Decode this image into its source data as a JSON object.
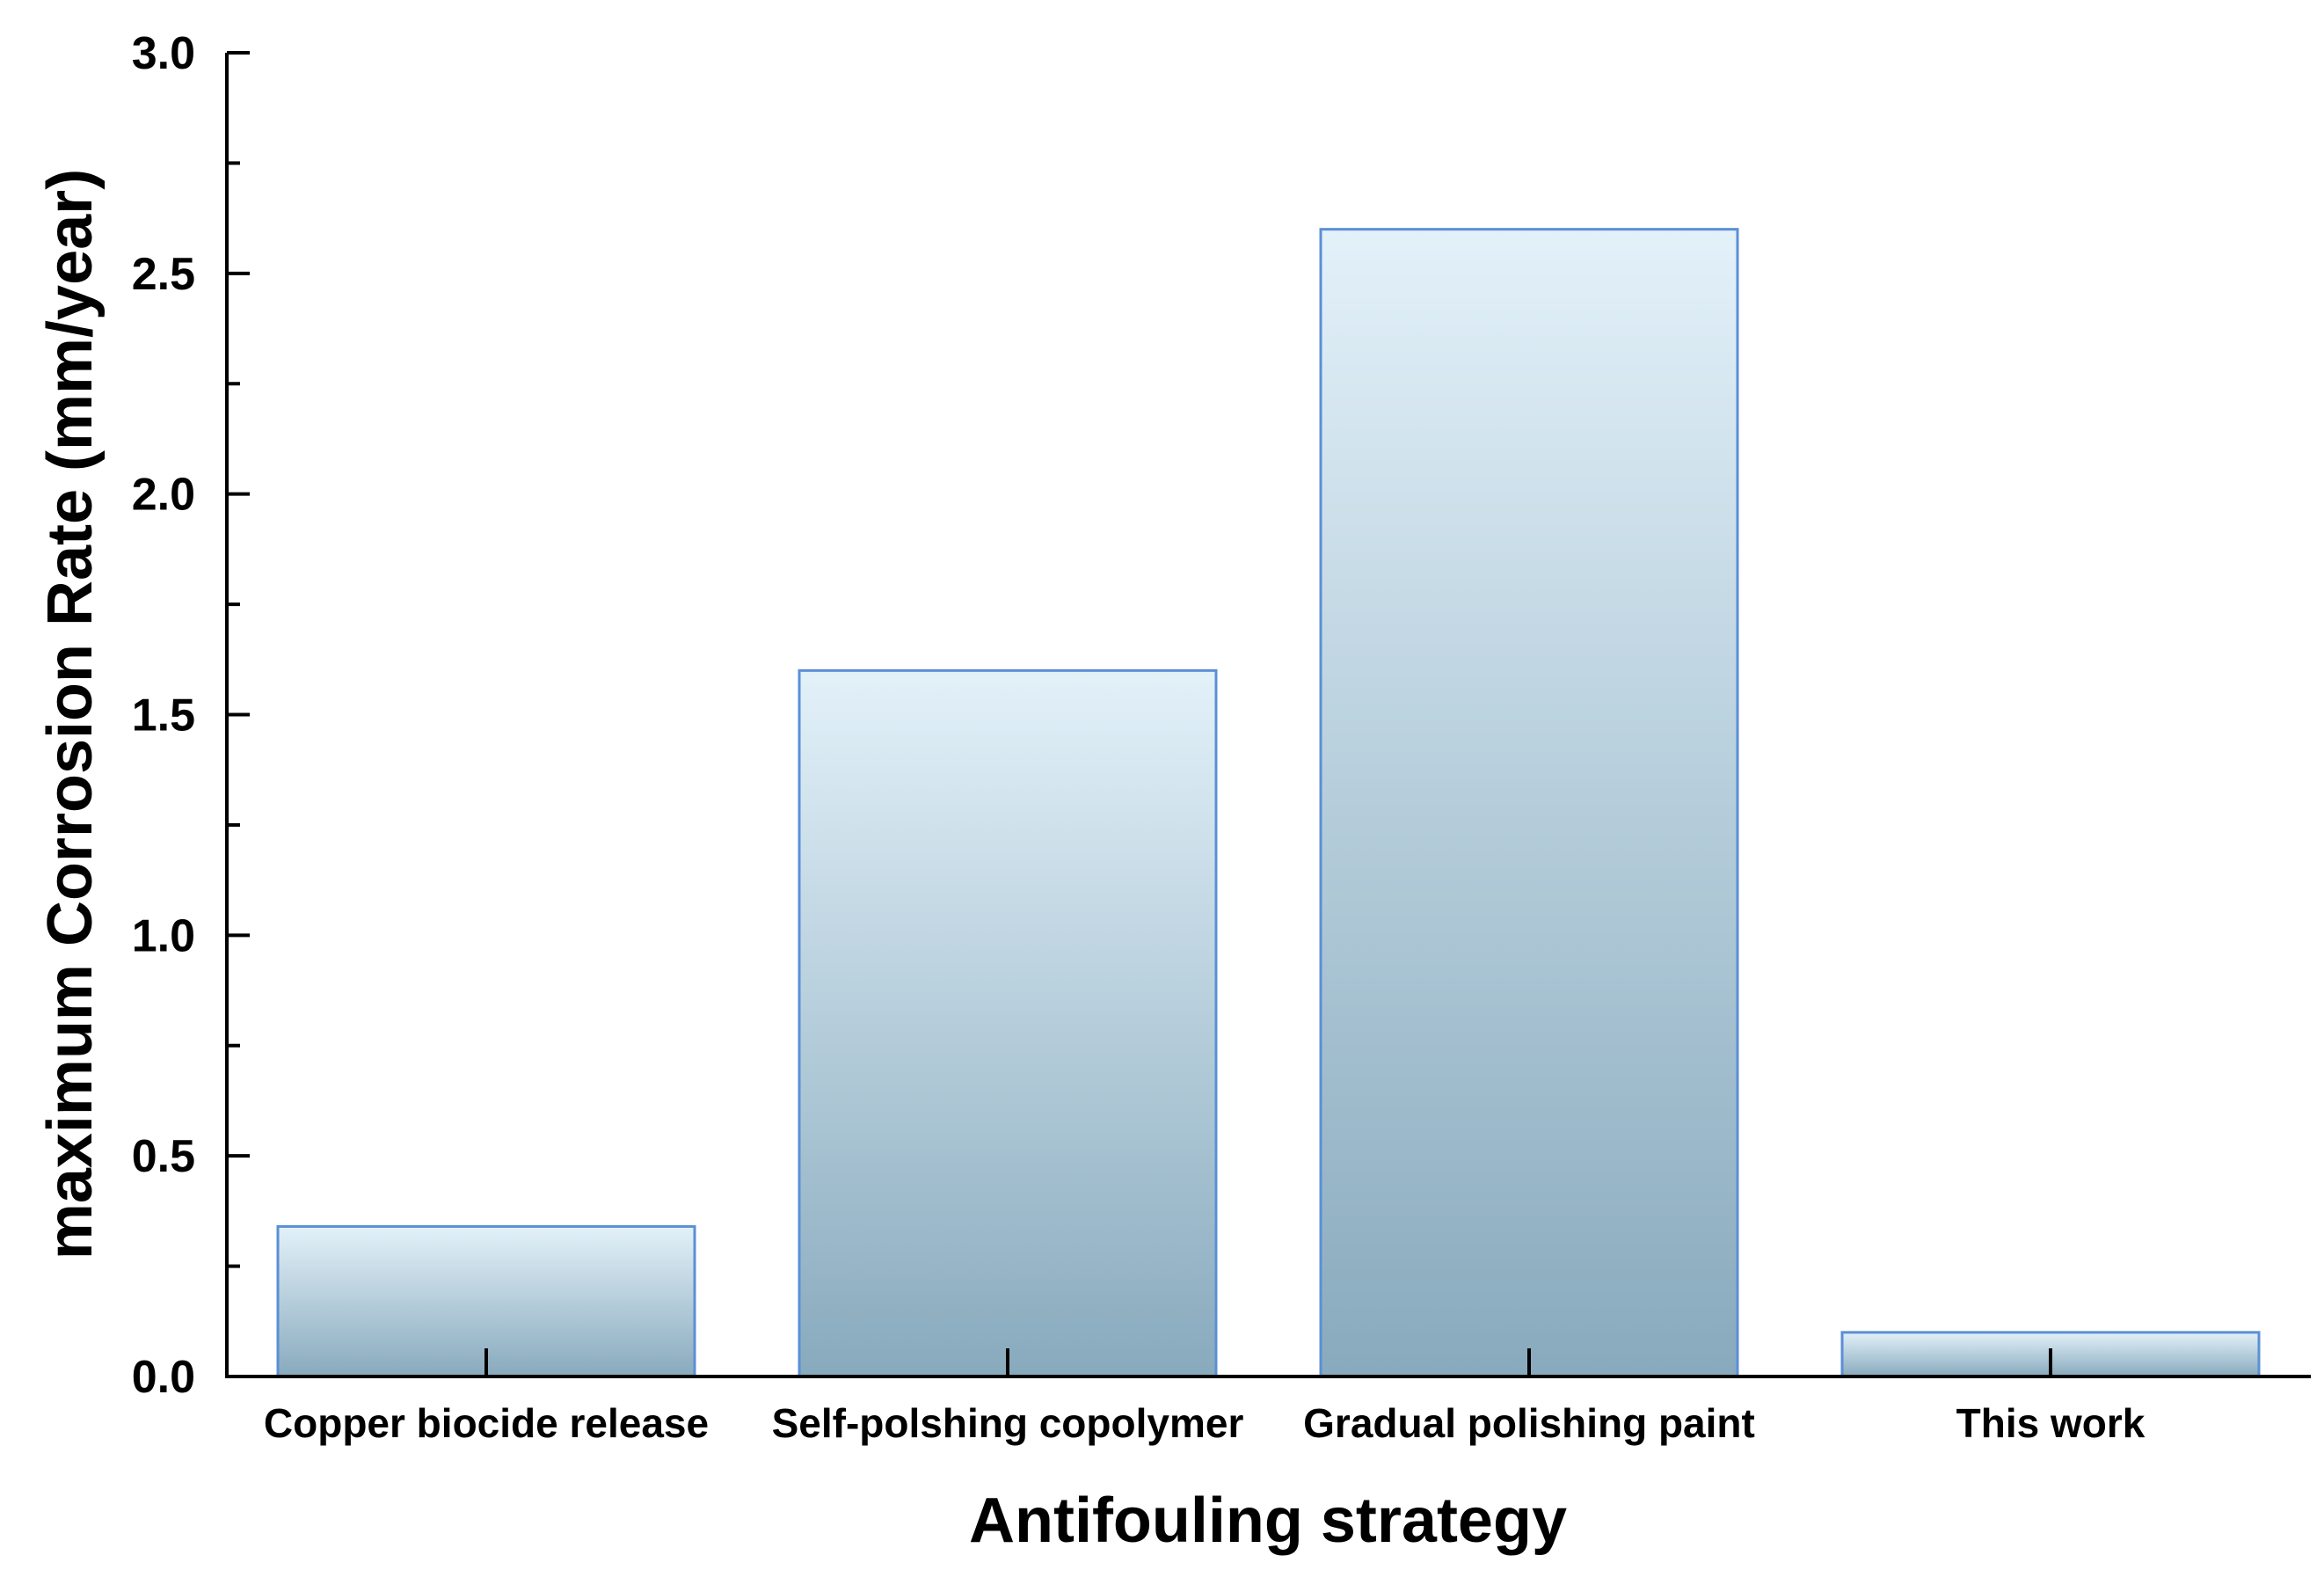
{
  "chart_data": {
    "type": "bar",
    "title": "",
    "xlabel": "Antifouling strategy",
    "ylabel": "maximum Corrosion Rate (mm/year)",
    "categories": [
      "Copper biocide release",
      "Self-polshing copolymer",
      "Gradual polishing paint",
      "This work"
    ],
    "values": [
      0.34,
      1.6,
      2.6,
      0.1
    ],
    "ylim": [
      0,
      3.0
    ],
    "yticks": [
      "0.0",
      "0.5",
      "1.0",
      "1.5",
      "2.0",
      "2.5",
      "3.0"
    ],
    "grid": false,
    "legend": "none",
    "colors": {
      "bar_top": "#e3f1f9",
      "bar_bottom": "#88aabd",
      "bar_edge": "#5b8fd6",
      "axis": "#000000"
    }
  }
}
